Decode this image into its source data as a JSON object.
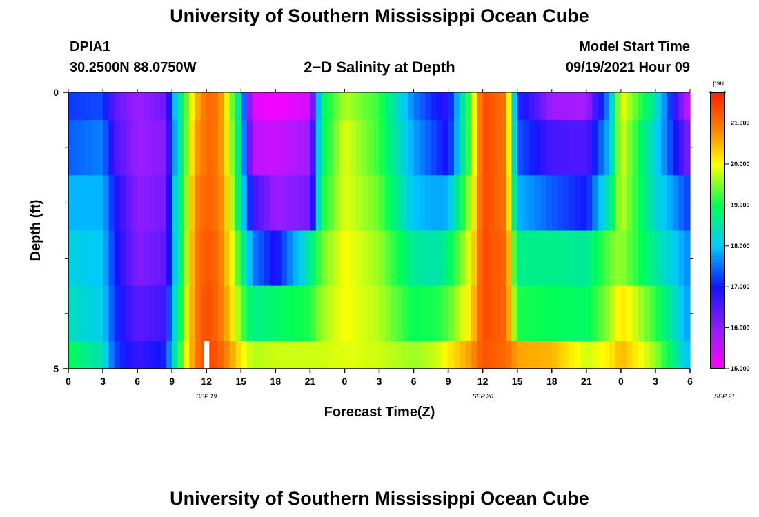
{
  "header": {
    "title": "University of Southern Mississippi Ocean Cube",
    "station_id": "DPIA1",
    "coordinates": "30.2500N  88.0750W",
    "plot_title": "2−D Salinity at Depth",
    "model_start_label": "Model Start Time",
    "model_start_value": "09/19/2021 Hour 09"
  },
  "footer": {
    "title": "University of Southern Mississippi Ocean Cube"
  },
  "chart_data": {
    "type": "heatmap",
    "title": "2−D Salinity at Depth",
    "xlabel": "Forecast Time(Z)",
    "ylabel": "Depth (ft)",
    "x_start": "2021-09-19T00:00Z",
    "x_end": "2021-09-21T06:00Z",
    "x_tick_labels": [
      "0",
      "3",
      "6",
      "9",
      "12",
      "15",
      "18",
      "21",
      "0",
      "3",
      "6",
      "9",
      "12",
      "15",
      "18",
      "21",
      "0",
      "3",
      "6"
    ],
    "date_labels": [
      "SEP 19",
      "SEP 20",
      "SEP 21"
    ],
    "date_label_hours": [
      12,
      36,
      57
    ],
    "ylim": [
      0,
      5
    ],
    "y_tick_labels": [
      "0",
      "5"
    ],
    "y_minor_ticks": [
      1,
      2,
      3,
      4
    ],
    "depth_bands": [
      [
        0,
        0.5
      ],
      [
        0.5,
        1.5
      ],
      [
        1.5,
        2.5
      ],
      [
        2.5,
        3.5
      ],
      [
        3.5,
        4.5
      ],
      [
        4.5,
        5
      ]
    ],
    "colorbar": {
      "unit": "psu",
      "min": 15.0,
      "max": 21.75,
      "tick_values": [
        15.0,
        16.0,
        17.0,
        18.0,
        19.0,
        20.0,
        21.0
      ],
      "tick_labels": [
        "15.000",
        "16.000",
        "17.000",
        "18.000",
        "19.000",
        "20.000",
        "21.000"
      ],
      "colors": [
        "#ff00ff",
        "#9d1cff",
        "#1414ff",
        "#00c8ff",
        "#00ff55",
        "#ffff00",
        "#ff8800",
        "#ff2200"
      ],
      "color_stops": [
        15.0,
        15.9,
        17.0,
        18.0,
        19.0,
        20.0,
        20.8,
        21.75
      ]
    },
    "series": [
      {
        "depth": "0.0-0.5",
        "x": [
          0,
          3,
          4,
          6,
          8.5,
          9,
          10,
          11,
          12,
          13,
          14,
          15,
          16,
          18,
          21,
          22,
          24,
          27,
          30,
          32,
          33,
          35,
          36,
          38,
          39,
          42,
          45,
          47,
          48,
          51,
          54
        ],
        "values": [
          17.2,
          17.3,
          16.4,
          15.9,
          16.3,
          17.6,
          19.0,
          20.4,
          21.1,
          21.0,
          19.8,
          18.2,
          15.3,
          15.1,
          15.4,
          18.8,
          19.7,
          19.2,
          17.6,
          17.0,
          16.8,
          19.5,
          21.4,
          21.0,
          17.2,
          15.9,
          15.8,
          17.8,
          20.0,
          18.5,
          15.4
        ]
      },
      {
        "depth": "0.5-1.5",
        "x": [
          0,
          3,
          4,
          6,
          8.5,
          9,
          10,
          11,
          12,
          13,
          14,
          15,
          16,
          18,
          21,
          22,
          24,
          27,
          30,
          32,
          33,
          35,
          36,
          38,
          39,
          42,
          45,
          47,
          48,
          51,
          54
        ],
        "values": [
          17.4,
          17.6,
          16.6,
          15.9,
          16.1,
          17.4,
          19.0,
          20.6,
          21.1,
          21.0,
          19.9,
          18.3,
          15.6,
          15.5,
          15.9,
          18.8,
          19.9,
          19.2,
          17.8,
          17.2,
          16.9,
          19.5,
          21.4,
          21.0,
          17.4,
          16.6,
          16.5,
          18.0,
          19.9,
          18.2,
          16.1
        ]
      },
      {
        "depth": "1.5-2.5",
        "x": [
          0,
          3,
          4,
          6,
          8.5,
          9,
          10,
          11,
          12,
          13,
          14,
          15,
          16,
          18,
          21,
          22,
          24,
          27,
          30,
          32,
          33,
          35,
          36,
          38,
          39,
          42,
          45,
          47,
          48,
          51,
          54
        ],
        "values": [
          17.9,
          17.9,
          17.0,
          16.0,
          16.2,
          17.8,
          19.1,
          20.8,
          21.2,
          21.0,
          20.1,
          18.4,
          16.7,
          15.9,
          16.2,
          19.0,
          19.9,
          19.4,
          18.0,
          17.8,
          17.9,
          19.8,
          21.4,
          21.0,
          17.9,
          17.4,
          17.0,
          18.6,
          19.8,
          18.3,
          17.2
        ]
      },
      {
        "depth": "2.5-3.5",
        "x": [
          0,
          3,
          4,
          6,
          8.5,
          9,
          10,
          11,
          12,
          13,
          14,
          15,
          16,
          18,
          21,
          22,
          24,
          27,
          30,
          32,
          33,
          35,
          36,
          38,
          39,
          42,
          45,
          47,
          48,
          51,
          54
        ],
        "values": [
          18.2,
          18.0,
          17.1,
          16.1,
          16.4,
          17.6,
          19.2,
          20.9,
          21.3,
          21.1,
          20.2,
          19.0,
          17.6,
          16.9,
          18.6,
          19.4,
          20.0,
          19.6,
          18.6,
          18.5,
          18.8,
          20.0,
          21.4,
          21.1,
          18.7,
          18.7,
          18.6,
          19.4,
          19.6,
          18.6,
          17.6
        ]
      },
      {
        "depth": "3.5-4.5",
        "x": [
          0,
          3,
          4,
          6,
          8.5,
          9,
          10,
          11,
          12,
          13,
          14,
          15,
          16,
          18,
          21,
          22,
          24,
          27,
          30,
          32,
          33,
          35,
          36,
          38,
          39,
          42,
          45,
          47,
          48,
          51,
          54
        ],
        "values": [
          18.4,
          18.1,
          17.2,
          16.4,
          16.7,
          17.9,
          19.4,
          20.9,
          21.4,
          21.1,
          20.4,
          19.4,
          18.7,
          18.9,
          19.1,
          19.6,
          20.0,
          19.7,
          19.0,
          19.1,
          19.3,
          20.2,
          21.4,
          21.1,
          19.1,
          19.0,
          18.9,
          19.6,
          20.2,
          19.2,
          17.7
        ]
      },
      {
        "depth": "4.5-5.0",
        "x": [
          0,
          3,
          4,
          6,
          8.5,
          9,
          10,
          11,
          12,
          13,
          14,
          15,
          16,
          18,
          21,
          22,
          24,
          27,
          30,
          32,
          33,
          35,
          36,
          38,
          39,
          42,
          45,
          47,
          48,
          51,
          54
        ],
        "values": [
          19.0,
          18.4,
          17.3,
          16.7,
          17.1,
          18.1,
          19.6,
          20.9,
          21.4,
          21.3,
          20.7,
          20.1,
          19.7,
          19.8,
          19.8,
          19.8,
          19.9,
          19.8,
          19.6,
          19.8,
          20.1,
          20.7,
          21.3,
          21.1,
          20.6,
          20.5,
          19.8,
          20.1,
          20.5,
          19.6,
          17.9
        ]
      }
    ],
    "marker": {
      "label": "white bar",
      "x": 12,
      "depth": [
        4.5,
        5.0
      ]
    }
  }
}
